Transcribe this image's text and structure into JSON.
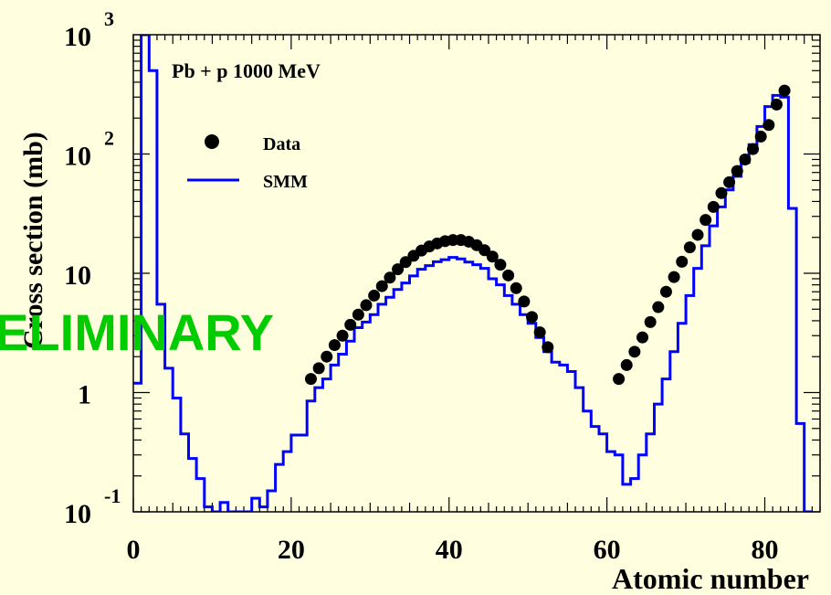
{
  "colors": {
    "background": "#ffffe0",
    "frame": "#000000",
    "data_marker": "#000000",
    "smm_line": "#0000ff",
    "watermark": "#00cc00"
  },
  "watermark": "PRELIMINARY",
  "chart_data": {
    "type": "line",
    "annotation": "Pb + p 1000 MeV",
    "xlabel": "Atomic number",
    "ylabel": "Cross section (mb)",
    "xlim": [
      0,
      87
    ],
    "ylim": [
      0.1,
      1000
    ],
    "yscale": "log",
    "x_ticks": [
      {
        "value": 0,
        "label": "0"
      },
      {
        "value": 20,
        "label": "20"
      },
      {
        "value": 40,
        "label": "40"
      },
      {
        "value": 60,
        "label": "60"
      },
      {
        "value": 80,
        "label": "80"
      }
    ],
    "y_ticks": [
      {
        "value": 0.1,
        "base": "10",
        "exp": "-1"
      },
      {
        "value": 1,
        "base": "1",
        "exp": ""
      },
      {
        "value": 10,
        "base": "10",
        "exp": ""
      },
      {
        "value": 100,
        "base": "10",
        "exp": "2"
      },
      {
        "value": 1000,
        "base": "10",
        "exp": "3"
      }
    ],
    "legend": {
      "placement": "top-left"
    },
    "series": [
      {
        "name": "Data",
        "style": "markers",
        "x": [
          22,
          23,
          24,
          25,
          26,
          27,
          28,
          29,
          30,
          31,
          32,
          33,
          34,
          35,
          36,
          37,
          38,
          39,
          40,
          41,
          42,
          43,
          44,
          45,
          46,
          47,
          48,
          49,
          50,
          51,
          52,
          61,
          62,
          63,
          64,
          65,
          66,
          67,
          68,
          69,
          70,
          71,
          72,
          73,
          74,
          75,
          76,
          77,
          78,
          79,
          80,
          81,
          82
        ],
        "values": [
          1.3,
          1.6,
          2.0,
          2.5,
          3.0,
          3.7,
          4.5,
          5.4,
          6.5,
          7.8,
          9.2,
          10.8,
          12.4,
          14.0,
          15.5,
          16.8,
          17.8,
          18.6,
          19.0,
          19.0,
          18.4,
          17.2,
          15.6,
          13.8,
          11.8,
          9.6,
          7.5,
          5.8,
          4.3,
          3.2,
          2.4,
          1.3,
          1.7,
          2.2,
          2.9,
          3.9,
          5.2,
          7.0,
          9.3,
          12.5,
          16.5,
          21,
          28,
          36,
          47,
          58,
          72,
          90,
          110,
          140,
          175,
          260,
          340
        ]
      },
      {
        "name": "SMM",
        "style": "step",
        "x": [
          0,
          1,
          2,
          3,
          4,
          5,
          6,
          7,
          8,
          9,
          10,
          11,
          12,
          13,
          14,
          15,
          16,
          17,
          18,
          19,
          20,
          21,
          22,
          23,
          24,
          25,
          26,
          27,
          28,
          29,
          30,
          31,
          32,
          33,
          34,
          35,
          36,
          37,
          38,
          39,
          40,
          41,
          42,
          43,
          44,
          45,
          46,
          47,
          48,
          49,
          50,
          51,
          52,
          53,
          54,
          55,
          56,
          57,
          58,
          59,
          60,
          61,
          62,
          63,
          64,
          65,
          66,
          67,
          68,
          69,
          70,
          71,
          72,
          73,
          74,
          75,
          76,
          77,
          78,
          79,
          80,
          81,
          82,
          83,
          84,
          85
        ],
        "values": [
          1.2,
          1000,
          500,
          5.5,
          1.6,
          0.9,
          0.45,
          0.28,
          0.19,
          0.11,
          0.09,
          0.12,
          0.1,
          0.085,
          0.085,
          0.13,
          0.11,
          0.15,
          0.25,
          0.32,
          0.44,
          0.44,
          0.85,
          1.1,
          1.3,
          1.7,
          2.1,
          2.7,
          3.5,
          3.9,
          4.5,
          5.5,
          6.3,
          7.3,
          8.3,
          9.5,
          10.8,
          11.6,
          12.5,
          13.0,
          13.6,
          13.2,
          12.4,
          11.8,
          11.0,
          9.0,
          8.0,
          6.5,
          5.5,
          4.5,
          3.8,
          2.9,
          2.2,
          1.8,
          1.7,
          1.5,
          1.1,
          0.7,
          0.52,
          0.45,
          0.32,
          0.3,
          0.17,
          0.19,
          0.3,
          0.45,
          0.8,
          1.3,
          2.2,
          3.8,
          6.5,
          11,
          17,
          25,
          36,
          50,
          65,
          85,
          120,
          170,
          250,
          310,
          300,
          35,
          0.55,
          0.04
        ]
      }
    ]
  }
}
